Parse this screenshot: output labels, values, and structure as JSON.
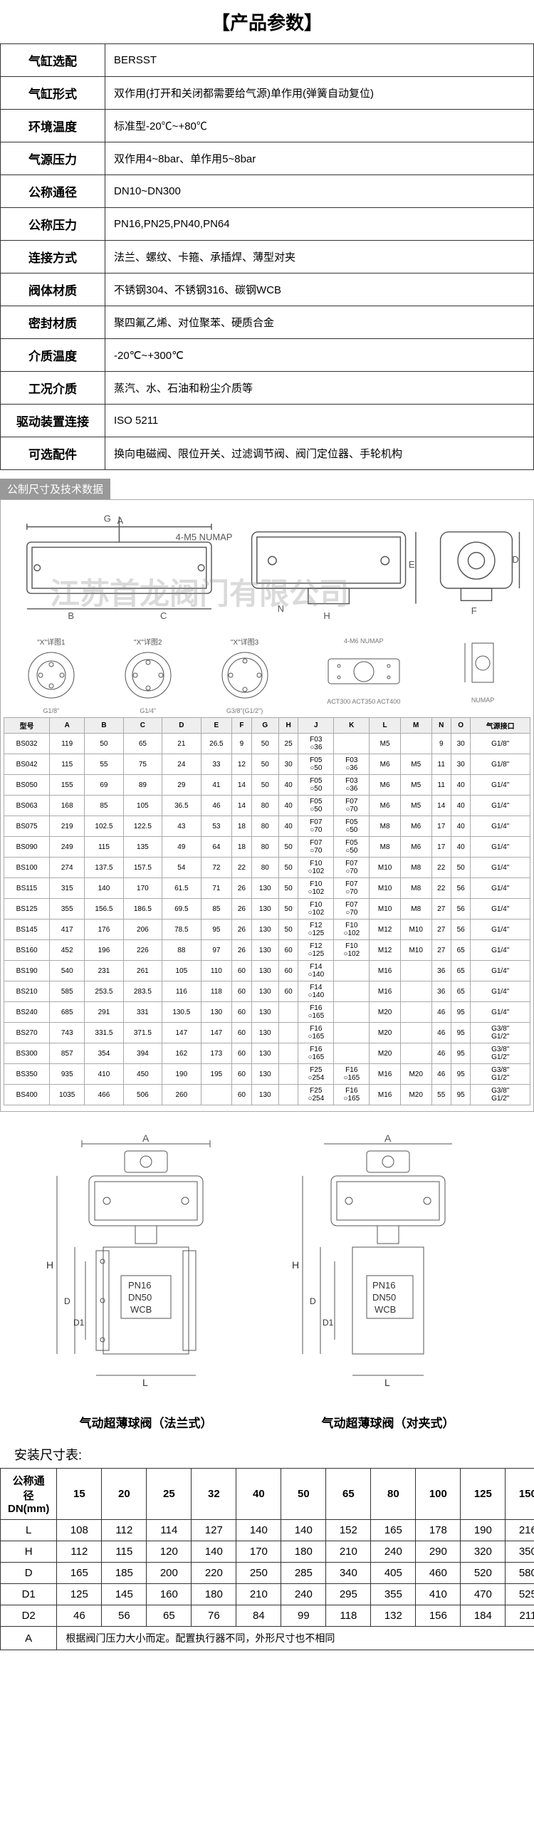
{
  "title": "【产品参数】",
  "params": [
    {
      "label": "气缸选配",
      "value": "BERSST"
    },
    {
      "label": "气缸形式",
      "value": "双作用(打开和关闭都需要给气源)单作用(弹簧自动复位)"
    },
    {
      "label": "环境温度",
      "value": "标准型-20℃~+80℃"
    },
    {
      "label": "气源压力",
      "value": "双作用4~8bar、单作用5~8bar"
    },
    {
      "label": "公称通径",
      "value": "DN10~DN300"
    },
    {
      "label": "公称压力",
      "value": "PN16,PN25,PN40,PN64"
    },
    {
      "label": "连接方式",
      "value": "法兰、螺纹、卡箍、承插焊、薄型对夹"
    },
    {
      "label": "阀体材质",
      "value": "不锈钢304、不锈钢316、碳钢WCB"
    },
    {
      "label": "密封材质",
      "value": "聚四氟乙烯、对位聚苯、硬质合金"
    },
    {
      "label": "介质温度",
      "value": "-20℃~+300℃"
    },
    {
      "label": "工况介质",
      "value": "蒸汽、水、石油和粉尘介质等"
    },
    {
      "label": "驱动装置连接",
      "value": "ISO 5211"
    },
    {
      "label": "可选配件",
      "value": "换向电磁阀、限位开关、过滤调节阀、阀门定位器、手轮机构"
    }
  ],
  "tech_header": "公制尺寸及技术数据",
  "watermark": "江苏首龙阀门有限公司",
  "detail_labels": {
    "x1": "\"X\"详图1",
    "x2": "\"X\"详图2",
    "x3": "\"X\"详图3",
    "numap": "4-M5\nNUMAP",
    "numap6": "4-M6\nNUMAP",
    "act": "ACT300 ACT350 ACT400",
    "num": "NUMAP"
  },
  "port_labels": {
    "g18": "G1/8\"",
    "g14": "G1/4\"",
    "g38": "G3/8\"(G1/2\")"
  },
  "spec_headers": [
    "型号",
    "A",
    "B",
    "C",
    "D",
    "E",
    "F",
    "G",
    "H",
    "J",
    "K",
    "L",
    "M",
    "N",
    "O",
    "气源接口"
  ],
  "spec_rows": [
    [
      "BS032",
      "119",
      "50",
      "65",
      "21",
      "26.5",
      "9",
      "50",
      "25",
      "F03\n○36",
      "",
      "M5",
      "",
      "9",
      "30",
      "G1/8\""
    ],
    [
      "BS042",
      "115",
      "55",
      "75",
      "24",
      "33",
      "12",
      "50",
      "30",
      "F05\n○50",
      "F03\n○36",
      "M6",
      "M5",
      "11",
      "30",
      "G1/8\""
    ],
    [
      "BS050",
      "155",
      "69",
      "89",
      "29",
      "41",
      "14",
      "50",
      "40",
      "F05\n○50",
      "F03\n○36",
      "M6",
      "M5",
      "11",
      "40",
      "G1/4\""
    ],
    [
      "BS063",
      "168",
      "85",
      "105",
      "36.5",
      "46",
      "14",
      "80",
      "40",
      "F05\n○50",
      "F07\n○70",
      "M6",
      "M5",
      "14",
      "40",
      "G1/4\""
    ],
    [
      "BS075",
      "219",
      "102.5",
      "122.5",
      "43",
      "53",
      "18",
      "80",
      "40",
      "F07\n○70",
      "F05\n○50",
      "M8",
      "M6",
      "17",
      "40",
      "G1/4\""
    ],
    [
      "BS090",
      "249",
      "115",
      "135",
      "49",
      "64",
      "18",
      "80",
      "50",
      "F07\n○70",
      "F05\n○50",
      "M8",
      "M6",
      "17",
      "40",
      "G1/4\""
    ],
    [
      "BS100",
      "274",
      "137.5",
      "157.5",
      "54",
      "72",
      "22",
      "80",
      "50",
      "F10\n○102",
      "F07\n○70",
      "M10",
      "M8",
      "22",
      "50",
      "G1/4\""
    ],
    [
      "BS115",
      "315",
      "140",
      "170",
      "61.5",
      "71",
      "26",
      "130",
      "50",
      "F10\n○102",
      "F07\n○70",
      "M10",
      "M8",
      "22",
      "56",
      "G1/4\""
    ],
    [
      "BS125",
      "355",
      "156.5",
      "186.5",
      "69.5",
      "85",
      "26",
      "130",
      "50",
      "F10\n○102",
      "F07\n○70",
      "M10",
      "M8",
      "27",
      "56",
      "G1/4\""
    ],
    [
      "BS145",
      "417",
      "176",
      "206",
      "78.5",
      "95",
      "26",
      "130",
      "50",
      "F12\n○125",
      "F10\n○102",
      "M12",
      "M10",
      "27",
      "56",
      "G1/4\""
    ],
    [
      "BS160",
      "452",
      "196",
      "226",
      "88",
      "97",
      "26",
      "130",
      "60",
      "F12\n○125",
      "F10\n○102",
      "M12",
      "M10",
      "27",
      "65",
      "G1/4\""
    ],
    [
      "BS190",
      "540",
      "231",
      "261",
      "105",
      "110",
      "60",
      "130",
      "60",
      "F14\n○140",
      "",
      "M16",
      "",
      "36",
      "65",
      "G1/4\""
    ],
    [
      "BS210",
      "585",
      "253.5",
      "283.5",
      "116",
      "118",
      "60",
      "130",
      "60",
      "F14\n○140",
      "",
      "M16",
      "",
      "36",
      "65",
      "G1/4\""
    ],
    [
      "BS240",
      "685",
      "291",
      "331",
      "130.5",
      "130",
      "60",
      "130",
      "",
      "F16\n○165",
      "",
      "M20",
      "",
      "46",
      "95",
      "G1/4\""
    ],
    [
      "BS270",
      "743",
      "331.5",
      "371.5",
      "147",
      "147",
      "60",
      "130",
      "",
      "F16\n○165",
      "",
      "M20",
      "",
      "46",
      "95",
      "G3/8\"\nG1/2\""
    ],
    [
      "BS300",
      "857",
      "354",
      "394",
      "162",
      "173",
      "60",
      "130",
      "",
      "F16\n○165",
      "",
      "M20",
      "",
      "46",
      "95",
      "G3/8\"\nG1/2\""
    ],
    [
      "BS350",
      "935",
      "410",
      "450",
      "190",
      "195",
      "60",
      "130",
      "",
      "F25\n○254",
      "F16\n○165",
      "M16",
      "M20",
      "46",
      "95",
      "G3/8\"\nG1/2\""
    ],
    [
      "BS400",
      "1035",
      "466",
      "506",
      "260",
      "",
      "60",
      "130",
      "",
      "F25\n○254",
      "F16\n○165",
      "M16",
      "M20",
      "55",
      "95",
      "G3/8\"\nG1/2\""
    ]
  ],
  "valve_labels": {
    "pn": "PN16",
    "dn": "DN50",
    "mat": "WCB",
    "a": "A",
    "h": "H",
    "d": "D",
    "d1": "D1",
    "l": "L"
  },
  "valve_caption_1": "气动超薄球阀（法兰式）",
  "valve_caption_2": "气动超薄球阀（对夹式）",
  "install_title": "安装尺寸表:",
  "install_headers": [
    "公称通径\nDN(mm)",
    "15",
    "20",
    "25",
    "32",
    "40",
    "50",
    "65",
    "80",
    "100",
    "125",
    "150"
  ],
  "install_rows": [
    [
      "L",
      "108",
      "112",
      "114",
      "127",
      "140",
      "140",
      "152",
      "165",
      "178",
      "190",
      "216"
    ],
    [
      "H",
      "112",
      "115",
      "120",
      "140",
      "170",
      "180",
      "210",
      "240",
      "290",
      "320",
      "350"
    ],
    [
      "D",
      "165",
      "185",
      "200",
      "220",
      "250",
      "285",
      "340",
      "405",
      "460",
      "520",
      "580"
    ],
    [
      "D1",
      "125",
      "145",
      "160",
      "180",
      "210",
      "240",
      "295",
      "355",
      "410",
      "470",
      "525"
    ],
    [
      "D2",
      "46",
      "56",
      "65",
      "76",
      "84",
      "99",
      "118",
      "132",
      "156",
      "184",
      "211"
    ]
  ],
  "install_note_label": "A",
  "install_note": "根据阀门压力大小而定。配置执行器不同，外形尺寸也不相同"
}
